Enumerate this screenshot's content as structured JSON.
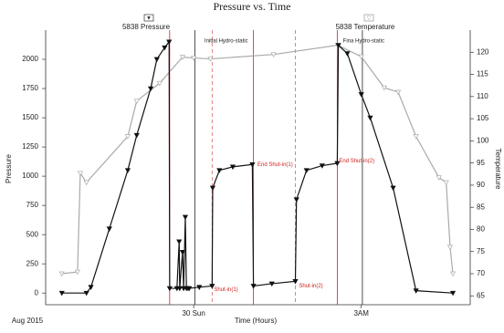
{
  "chart_data": {
    "type": "line",
    "title": "Pressure vs. Time",
    "x_label": "Time (Hours)",
    "x_start_label": "Aug 2015",
    "y_label": "Pressure",
    "y2_label": "Temperature",
    "xlim": [
      -2.65,
      4.95
    ],
    "xticks": [
      {
        "value": 0,
        "label": "30 Sun"
      },
      {
        "value": 3,
        "label": "3AM"
      }
    ],
    "ylim": [
      -100,
      2250
    ],
    "yticks": [
      0,
      250,
      500,
      750,
      1000,
      1250,
      1500,
      1750,
      2000
    ],
    "y2lim": [
      63,
      125
    ],
    "y2ticks": [
      65,
      70,
      75,
      80,
      85,
      90,
      95,
      100,
      105,
      110,
      115,
      120
    ],
    "series": [
      {
        "name": "5838 Pressure",
        "color": "#111111",
        "marker": "triangle-down",
        "x": [
          -2.36,
          -1.92,
          -1.84,
          -1.51,
          -1.18,
          -1.02,
          -0.77,
          -0.66,
          -0.52,
          -0.44,
          -0.43,
          -0.3,
          -0.26,
          -0.25,
          -0.2,
          -0.18,
          -0.15,
          -0.13,
          -0.1,
          -0.08,
          0.1,
          0.33,
          0.34,
          0.46,
          0.7,
          1.05,
          1.07,
          1.4,
          1.82,
          1.84,
          2.02,
          2.3,
          2.57,
          2.59,
          2.75,
          3.0,
          3.16,
          3.57,
          3.98,
          4.64
        ],
        "values": [
          0,
          0,
          50,
          550,
          1050,
          1350,
          1750,
          2000,
          2100,
          2150,
          40,
          40,
          440,
          40,
          350,
          40,
          650,
          40,
          40,
          40,
          50,
          60,
          900,
          1050,
          1080,
          1100,
          60,
          80,
          100,
          800,
          1050,
          1090,
          1110,
          2120,
          2050,
          1700,
          1500,
          900,
          20,
          0
        ]
      },
      {
        "name": "5838 Temperature",
        "color": "#aaaaaa",
        "marker": "triangle-down-open",
        "axis": "y2",
        "x": [
          -2.36,
          -2.08,
          -2.03,
          -1.92,
          -1.18,
          -1.02,
          -0.61,
          -0.2,
          0,
          0.3,
          1.43,
          2.58,
          3.0,
          3.41,
          3.66,
          3.98,
          4.39,
          4.52,
          4.59,
          4.64
        ],
        "values": [
          70,
          70.4,
          92.7,
          90.6,
          101,
          109,
          113,
          118.9,
          118.7,
          118.5,
          119.5,
          121.6,
          119,
          112,
          111,
          101,
          91.7,
          90.6,
          76,
          70
        ]
      }
    ],
    "event_lines": [
      {
        "x": 0.02,
        "color": "#222222",
        "dashed": false
      },
      {
        "x": 3.02,
        "color": "#222222",
        "dashed": false
      },
      {
        "x": -0.43,
        "color": "#d02020",
        "dashed": false
      },
      {
        "x": 1.07,
        "color": "#d02020",
        "dashed": false
      },
      {
        "x": 2.57,
        "color": "#d02020",
        "dashed": false
      },
      {
        "x": 0.33,
        "color": "#e06060",
        "dashed": true
      },
      {
        "x": 1.82,
        "color": "#e06060",
        "dashed": true
      }
    ],
    "annotations": [
      {
        "text": "Initial Hydro-static",
        "x": 0.16,
        "y": 2156,
        "color": "#222222"
      },
      {
        "text": "Fina Hydro-static",
        "x": 2.64,
        "y": 2156,
        "color": "#222222"
      },
      {
        "text": "End Shut-in(1)",
        "x": 1.11,
        "y": 1100,
        "color": "#d02020"
      },
      {
        "text": "End Shut-in(2)",
        "x": 2.57,
        "y": 1130,
        "color": "#d02020"
      },
      {
        "text": "Shut-in(1)",
        "x": 0.33,
        "y": 30,
        "color": "#d02020"
      },
      {
        "text": "Shut-in(2)",
        "x": 1.85,
        "y": 60,
        "color": "#d02020"
      }
    ]
  }
}
